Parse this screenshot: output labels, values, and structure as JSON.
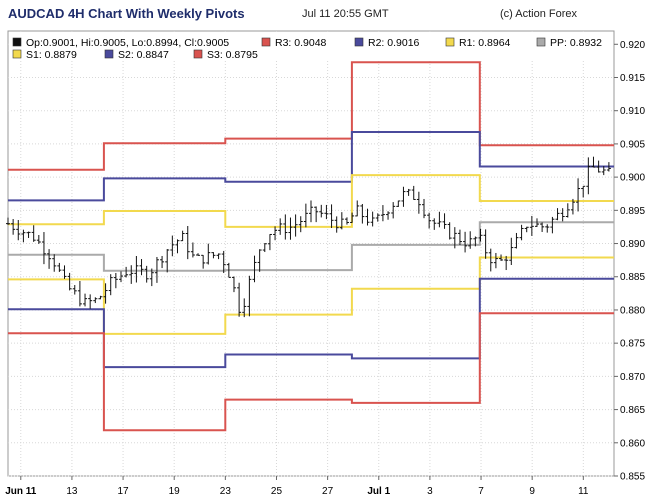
{
  "header": {
    "title": "AUDCAD 4H Chart With Weekly Pivots",
    "timestamp": "Jul 11 20:55 GMT",
    "credit": "(c) Action Forex"
  },
  "chart_data": {
    "type": "line",
    "title": "AUDCAD 4H Chart With Weekly Pivots",
    "ylim": [
      0.855,
      0.922
    ],
    "y_ticks": [
      "0.920",
      "0.915",
      "0.910",
      "0.905",
      "0.900",
      "0.895",
      "0.890",
      "0.885",
      "0.880",
      "0.875",
      "0.870",
      "0.865",
      "0.860",
      "0.855"
    ],
    "x_ticks": [
      {
        "label": "Jun 11",
        "bold": true,
        "x": 0
      },
      {
        "label": "13",
        "bold": false,
        "x": 2
      },
      {
        "label": "17",
        "bold": false,
        "x": 4
      },
      {
        "label": "19",
        "bold": false,
        "x": 6
      },
      {
        "label": "23",
        "bold": false,
        "x": 8
      },
      {
        "label": "25",
        "bold": false,
        "x": 10
      },
      {
        "label": "27",
        "bold": false,
        "x": 12
      },
      {
        "label": "Jul 1",
        "bold": true,
        "x": 14
      },
      {
        "label": "3",
        "bold": false,
        "x": 16
      },
      {
        "label": "7",
        "bold": false,
        "x": 18
      },
      {
        "label": "9",
        "bold": false,
        "x": 20
      },
      {
        "label": "11",
        "bold": false,
        "x": 22
      }
    ],
    "x_range": [
      -0.5,
      23.2
    ],
    "legend": [
      {
        "key": "ohlc",
        "text": "Op:0.9001, Hi:0.9005, Lo:0.8994, Cl:0.9005",
        "color": "#111111"
      },
      {
        "key": "r3",
        "text": "R3: 0.9048",
        "color": "#d9534f"
      },
      {
        "key": "r2",
        "text": "R2: 0.9016",
        "color": "#4a4a9c"
      },
      {
        "key": "r1",
        "text": "R1: 0.8964",
        "color": "#f2d94e"
      },
      {
        "key": "pp",
        "text": "PP: 0.8932",
        "color": "#aaaaaa"
      },
      {
        "key": "s1",
        "text": "S1: 0.8879",
        "color": "#f2d94e"
      },
      {
        "key": "s2",
        "text": "S2: 0.8847",
        "color": "#4a4a9c"
      },
      {
        "key": "s3",
        "text": "S3: 0.8795",
        "color": "#d9534f"
      }
    ],
    "pivot_weeks": [
      {
        "x_start": -0.5,
        "x_end": 3.25,
        "r3": 0.9011,
        "r2": 0.8965,
        "r1": 0.8929,
        "pp": 0.8883,
        "s1": 0.8846,
        "s2": 0.8801,
        "s3": 0.8765
      },
      {
        "x_start": 3.25,
        "x_end": 8.0,
        "r3": 0.9051,
        "r2": 0.8998,
        "r1": 0.8949,
        "pp": 0.8859,
        "s1": 0.8764,
        "s2": 0.8714,
        "s3": 0.8619
      },
      {
        "x_start": 8.0,
        "x_end": 12.95,
        "r3": 0.9058,
        "r2": 0.8993,
        "r1": 0.8925,
        "pp": 0.886,
        "s1": 0.8793,
        "s2": 0.8733,
        "s3": 0.8665
      },
      {
        "x_start": 12.95,
        "x_end": 17.95,
        "r3": 0.9173,
        "r2": 0.9068,
        "r1": 0.9003,
        "pp": 0.8898,
        "s1": 0.8832,
        "s2": 0.8727,
        "s3": 0.866
      },
      {
        "x_start": 17.95,
        "x_end": 23.2,
        "r3": 0.9048,
        "r2": 0.9016,
        "r1": 0.8964,
        "pp": 0.8932,
        "s1": 0.8879,
        "s2": 0.8847,
        "s3": 0.8795
      }
    ],
    "price_path": [
      [
        -0.5,
        0.893
      ],
      [
        0.5,
        0.891
      ],
      [
        1.2,
        0.888
      ],
      [
        1.8,
        0.8835
      ],
      [
        2.5,
        0.881
      ],
      [
        3.0,
        0.8815
      ],
      [
        3.5,
        0.884
      ],
      [
        4.2,
        0.886
      ],
      [
        5.0,
        0.8855
      ],
      [
        5.8,
        0.8895
      ],
      [
        6.3,
        0.891
      ],
      [
        6.8,
        0.8875
      ],
      [
        7.3,
        0.888
      ],
      [
        7.8,
        0.8885
      ],
      [
        8.2,
        0.885
      ],
      [
        8.6,
        0.8795
      ],
      [
        9.0,
        0.885
      ],
      [
        9.4,
        0.89
      ],
      [
        9.8,
        0.892
      ],
      [
        10.6,
        0.8925
      ],
      [
        11.5,
        0.895
      ],
      [
        12.2,
        0.8935
      ],
      [
        12.7,
        0.8925
      ],
      [
        13.1,
        0.895
      ],
      [
        13.8,
        0.893
      ],
      [
        14.4,
        0.8955
      ],
      [
        15.0,
        0.8975
      ],
      [
        15.5,
        0.897
      ],
      [
        16.0,
        0.8935
      ],
      [
        16.8,
        0.8915
      ],
      [
        17.5,
        0.89
      ],
      [
        17.9,
        0.891
      ],
      [
        18.3,
        0.888
      ],
      [
        18.7,
        0.887
      ],
      [
        19.2,
        0.889
      ],
      [
        19.8,
        0.893
      ],
      [
        20.5,
        0.8925
      ],
      [
        21.2,
        0.895
      ],
      [
        21.9,
        0.8985
      ],
      [
        22.3,
        0.9015
      ],
      [
        22.7,
        0.901
      ],
      [
        23.0,
        0.9005
      ]
    ],
    "bar_count": 118,
    "grid": true
  }
}
